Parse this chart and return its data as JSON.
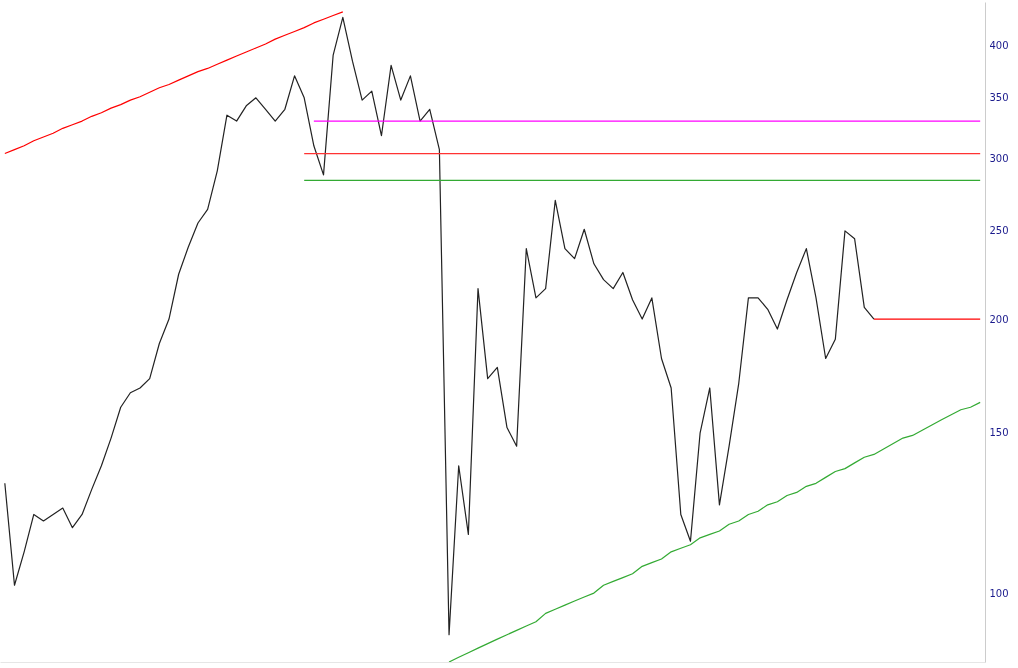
{
  "chart_data": {
    "type": "line",
    "log": "y",
    "ylim": [
      84,
      446
    ],
    "yticks": [
      100,
      150,
      200,
      250,
      300,
      350,
      400
    ],
    "tick_labels": "y",
    "grid": false,
    "categories": [
      null,
      null,
      null,
      null,
      null,
      null,
      null,
      null,
      null,
      null,
      null,
      null,
      null,
      null,
      null,
      null,
      null,
      null,
      null,
      null,
      null,
      null,
      null,
      null,
      null,
      null,
      null,
      null,
      null,
      null,
      null,
      null,
      null,
      null,
      null,
      null,
      null,
      null,
      null,
      null,
      null,
      null,
      null,
      null,
      null,
      null,
      null,
      null,
      null,
      null,
      null,
      null,
      null,
      null,
      null,
      null,
      null,
      null,
      null,
      null,
      null,
      null,
      null,
      null,
      null,
      null,
      null,
      null,
      null,
      null,
      null,
      null,
      null,
      null,
      null,
      null,
      null,
      null,
      null,
      null,
      null,
      null,
      null,
      null,
      null,
      null,
      null,
      null,
      null,
      null,
      null,
      null,
      null,
      null,
      null,
      null,
      null,
      null,
      null,
      null,
      null,
      null
    ],
    "series": [
      {
        "color": "#222222",
        "values": [
          132,
          102,
          111,
          122,
          120,
          122,
          124,
          118,
          122,
          130,
          138,
          148,
          160,
          166,
          168,
          172,
          188,
          200,
          224,
          240,
          255,
          264,
          291,
          335,
          330,
          343,
          350,
          340,
          330,
          340,
          370,
          350,
          310,
          288,
          390,
          429,
          384,
          348,
          356,
          318,
          380,
          348,
          370,
          330,
          340,
          307,
          90,
          138,
          116,
          216,
          172,
          177,
          152,
          145,
          239,
          211,
          216,
          270,
          239,
          233,
          251,
          230,
          221,
          216,
          225,
          210,
          200,
          211,
          181,
          168,
          122,
          114,
          150,
          168,
          125,
          145,
          170,
          211,
          211,
          205,
          195,
          210,
          225,
          239,
          211,
          181,
          190,
          250,
          245,
          206,
          200,
          null,
          null,
          null,
          null,
          null,
          null,
          null,
          null,
          null,
          null,
          null
        ]
      },
      {
        "color": "#ff0000",
        "values": [
          304,
          307,
          310,
          314,
          317,
          320,
          324,
          327,
          330,
          334,
          337,
          341,
          344,
          348,
          351,
          355,
          359,
          362,
          366,
          370,
          374,
          377,
          381,
          385,
          389,
          393,
          397,
          401,
          406,
          410,
          414,
          418,
          423,
          427,
          431,
          435,
          null,
          null,
          null,
          null,
          null,
          null,
          null,
          null,
          null,
          null,
          null,
          null,
          null,
          null,
          null,
          null,
          null,
          null,
          null,
          null,
          null,
          null,
          null,
          null,
          null,
          null,
          null,
          null,
          null,
          null,
          null,
          null,
          null,
          null,
          null,
          null,
          null,
          null,
          null,
          null,
          null,
          null,
          null,
          null,
          null,
          null,
          null,
          null,
          null,
          null,
          null,
          null,
          null,
          null,
          null,
          null,
          null,
          null,
          null,
          null,
          null,
          null,
          null,
          null,
          null,
          null
        ]
      },
      {
        "color": "#33aa33",
        "values": [
          null,
          null,
          null,
          null,
          null,
          null,
          null,
          null,
          null,
          null,
          null,
          null,
          null,
          null,
          null,
          null,
          null,
          null,
          null,
          null,
          null,
          null,
          null,
          null,
          null,
          null,
          null,
          null,
          null,
          null,
          null,
          null,
          null,
          null,
          null,
          null,
          null,
          null,
          null,
          null,
          null,
          null,
          null,
          null,
          null,
          null,
          84,
          85,
          86,
          87,
          88,
          89,
          90,
          91,
          92,
          93,
          95,
          96,
          97,
          98,
          99,
          100,
          102,
          103,
          104,
          105,
          107,
          108,
          109,
          111,
          112,
          113,
          115,
          116,
          117,
          119,
          120,
          122,
          123,
          125,
          126,
          128,
          129,
          131,
          132,
          134,
          136,
          137,
          139,
          141,
          142,
          144,
          146,
          148,
          149,
          151,
          153,
          155,
          157,
          159,
          160,
          162
        ]
      },
      {
        "color": "#ff00ff",
        "values": [
          null,
          null,
          null,
          null,
          null,
          null,
          null,
          null,
          null,
          null,
          null,
          null,
          null,
          null,
          null,
          null,
          null,
          null,
          null,
          null,
          null,
          null,
          null,
          null,
          null,
          null,
          null,
          null,
          null,
          null,
          null,
          null,
          330,
          330,
          330,
          330,
          330,
          330,
          330,
          330,
          330,
          330,
          330,
          330,
          330,
          330,
          330,
          330,
          330,
          330,
          330,
          330,
          330,
          330,
          330,
          330,
          330,
          330,
          330,
          330,
          330,
          330,
          330,
          330,
          330,
          330,
          330,
          330,
          330,
          330,
          330,
          330,
          330,
          330,
          330,
          330,
          330,
          330,
          330,
          330,
          330,
          330,
          330,
          330,
          330,
          330,
          330,
          330,
          330,
          330,
          330,
          330,
          330,
          330,
          330,
          330,
          330,
          330,
          330,
          330,
          330,
          330
        ]
      },
      {
        "color": "#ff3333",
        "values": [
          null,
          null,
          null,
          null,
          null,
          null,
          null,
          null,
          null,
          null,
          null,
          null,
          null,
          null,
          null,
          null,
          null,
          null,
          null,
          null,
          null,
          null,
          null,
          null,
          null,
          null,
          null,
          null,
          null,
          null,
          null,
          304,
          304,
          304,
          304,
          304,
          304,
          304,
          304,
          304,
          304,
          304,
          304,
          304,
          304,
          304,
          304,
          304,
          304,
          304,
          304,
          304,
          304,
          304,
          304,
          304,
          304,
          304,
          304,
          304,
          304,
          304,
          304,
          304,
          304,
          304,
          304,
          304,
          304,
          304,
          304,
          304,
          304,
          304,
          304,
          304,
          304,
          304,
          304,
          304,
          304,
          304,
          304,
          304,
          304,
          304,
          304,
          304,
          304,
          304,
          304,
          304,
          304,
          304,
          304,
          304,
          304,
          304,
          304,
          304,
          304,
          304
        ]
      },
      {
        "color": "#33aa33",
        "values": [
          null,
          null,
          null,
          null,
          null,
          null,
          null,
          null,
          null,
          null,
          null,
          null,
          null,
          null,
          null,
          null,
          null,
          null,
          null,
          null,
          null,
          null,
          null,
          null,
          null,
          null,
          null,
          null,
          null,
          null,
          null,
          284,
          284,
          284,
          284,
          284,
          284,
          284,
          284,
          284,
          284,
          284,
          284,
          284,
          284,
          284,
          284,
          284,
          284,
          284,
          284,
          284,
          284,
          284,
          284,
          284,
          284,
          284,
          284,
          284,
          284,
          284,
          284,
          284,
          284,
          284,
          284,
          284,
          284,
          284,
          284,
          284,
          284,
          284,
          284,
          284,
          284,
          284,
          284,
          284,
          284,
          284,
          284,
          284,
          284,
          284,
          284,
          284,
          284,
          284,
          284,
          284,
          284,
          284,
          284,
          284,
          284,
          284,
          284,
          284,
          284,
          284
        ]
      },
      {
        "color": "#ff0000",
        "values": [
          null,
          null,
          null,
          null,
          null,
          null,
          null,
          null,
          null,
          null,
          null,
          null,
          null,
          null,
          null,
          null,
          null,
          null,
          null,
          null,
          null,
          null,
          null,
          null,
          null,
          null,
          null,
          null,
          null,
          null,
          null,
          null,
          null,
          null,
          null,
          null,
          null,
          null,
          null,
          null,
          null,
          null,
          null,
          null,
          null,
          null,
          null,
          null,
          null,
          null,
          null,
          null,
          null,
          null,
          null,
          null,
          null,
          null,
          null,
          null,
          null,
          null,
          null,
          null,
          null,
          null,
          null,
          null,
          null,
          null,
          null,
          null,
          null,
          null,
          null,
          null,
          null,
          null,
          null,
          null,
          null,
          null,
          null,
          null,
          null,
          null,
          null,
          null,
          null,
          null,
          200,
          200,
          200,
          200,
          200,
          200,
          200,
          200,
          200,
          200,
          200,
          200
        ]
      }
    ]
  }
}
